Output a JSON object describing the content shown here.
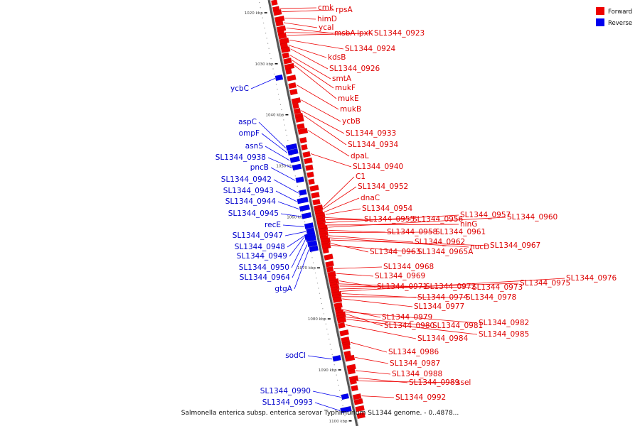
{
  "legend": {
    "forward": {
      "label": "Forward",
      "color": "#ee0000"
    },
    "reverse": {
      "label": "Reverse",
      "color": "#0000ee"
    }
  },
  "caption": "Salmonella enterica subsp. enterica serovar Typhimurium SL1344 genome. - 0..4878...",
  "ticks": [
    {
      "label": "1020 kbp",
      "kbp": 1020
    },
    {
      "label": "1030 kbp",
      "kbp": 1030
    },
    {
      "label": "1040 kbp",
      "kbp": 1040
    },
    {
      "label": "1050 kbp",
      "kbp": 1050
    },
    {
      "label": "1060 kbp",
      "kbp": 1060
    },
    {
      "label": "1070 kbp",
      "kbp": 1070
    },
    {
      "label": "1080 kbp",
      "kbp": 1080
    },
    {
      "label": "1090 kbp",
      "kbp": 1090
    },
    {
      "label": "1100 kbp",
      "kbp": 1100
    }
  ],
  "forward_genes": [
    {
      "name": "cmk",
      "kbp": 1019.5
    },
    {
      "name": "rpsA",
      "kbp": 1020.2
    },
    {
      "name": "himD",
      "kbp": 1021.5
    },
    {
      "name": "ycaI",
      "kbp": 1022.3
    },
    {
      "name": "msbA",
      "kbp": 1023.4
    },
    {
      "name": "lpxK",
      "kbp": 1024.2
    },
    {
      "name": "SL1344_0923",
      "kbp": 1024.8
    },
    {
      "name": "SL1344_0924",
      "kbp": 1025.8
    },
    {
      "name": "kdsB",
      "kbp": 1026.7
    },
    {
      "name": "SL1344_0926",
      "kbp": 1027.5
    },
    {
      "name": "smtA",
      "kbp": 1028.6
    },
    {
      "name": "mukF",
      "kbp": 1029.7
    },
    {
      "name": "mukE",
      "kbp": 1030.8
    },
    {
      "name": "mukB",
      "kbp": 1034.5
    },
    {
      "name": "ycbB",
      "kbp": 1037.5
    },
    {
      "name": "SL1344_0933",
      "kbp": 1039.5
    },
    {
      "name": "SL1344_0934",
      "kbp": 1040.5
    },
    {
      "name": "dpaL",
      "kbp": 1043.5
    },
    {
      "name": "SL1344_0940",
      "kbp": 1048.0
    },
    {
      "name": "C1",
      "kbp": 1058.5
    },
    {
      "name": "SL1344_0952",
      "kbp": 1059.0
    },
    {
      "name": "dnaC",
      "kbp": 1059.5
    },
    {
      "name": "SL1344_0954",
      "kbp": 1060.0
    },
    {
      "name": "SL1344_0955",
      "kbp": 1060.5
    },
    {
      "name": "SL1344_0956",
      "kbp": 1061.0
    },
    {
      "name": "SL1344_0957",
      "kbp": 1061.5
    },
    {
      "name": "ninG",
      "kbp": 1062.0
    },
    {
      "name": "SL1344_0960",
      "kbp": 1062.5
    },
    {
      "name": "SL1344_0958",
      "kbp": 1063.0
    },
    {
      "name": "SL1344_0961",
      "kbp": 1063.5
    },
    {
      "name": "SL1344_0962",
      "kbp": 1064.0
    },
    {
      "name": "nucD",
      "kbp": 1064.5
    },
    {
      "name": "SL1344_0967",
      "kbp": 1065.0
    },
    {
      "name": "SL1344_0963",
      "kbp": 1065.5
    },
    {
      "name": "SL1344_0965A",
      "kbp": 1066.0
    },
    {
      "name": "SL1344_0968",
      "kbp": 1070.5
    },
    {
      "name": "SL1344_0969",
      "kbp": 1071.5
    },
    {
      "name": "SL1344_0971",
      "kbp": 1073.0
    },
    {
      "name": "SL1344_0972",
      "kbp": 1073.5
    },
    {
      "name": "SL1344_0973",
      "kbp": 1074.0
    },
    {
      "name": "SL1344_0975",
      "kbp": 1074.5
    },
    {
      "name": "SL1344_0976",
      "kbp": 1075.0
    },
    {
      "name": "SL1344_0974",
      "kbp": 1075.5
    },
    {
      "name": "SL1344_0978",
      "kbp": 1076.0
    },
    {
      "name": "SL1344_0977",
      "kbp": 1076.5
    },
    {
      "name": "SL1344_0979",
      "kbp": 1078.5
    },
    {
      "name": "SL1344_0982",
      "kbp": 1079.0
    },
    {
      "name": "SL1344_0980",
      "kbp": 1079.5
    },
    {
      "name": "SL1344_0981",
      "kbp": 1080.0
    },
    {
      "name": "SL1344_0985",
      "kbp": 1080.5
    },
    {
      "name": "SL1344_0984",
      "kbp": 1081.5
    },
    {
      "name": "SL1344_0986",
      "kbp": 1085.0
    },
    {
      "name": "SL1344_0987",
      "kbp": 1088.0
    },
    {
      "name": "SL1344_0988",
      "kbp": 1090.5
    },
    {
      "name": "SL1344_0989",
      "kbp": 1092.0
    },
    {
      "name": "ssel",
      "kbp": 1092.5
    },
    {
      "name": "SL1344_0992",
      "kbp": 1095.5
    }
  ],
  "reverse_genes": [
    {
      "name": "ycbC",
      "kbp": 1032.5
    },
    {
      "name": "aspC",
      "kbp": 1046.0
    },
    {
      "name": "ompF",
      "kbp": 1047.0
    },
    {
      "name": "asnS",
      "kbp": 1048.5
    },
    {
      "name": "SL1344_0938",
      "kbp": 1050.0
    },
    {
      "name": "pncB",
      "kbp": 1052.5
    },
    {
      "name": "SL1344_0942",
      "kbp": 1055.0
    },
    {
      "name": "SL1344_0943",
      "kbp": 1056.5
    },
    {
      "name": "SL1344_0944",
      "kbp": 1058.0
    },
    {
      "name": "SL1344_0945",
      "kbp": 1059.5
    },
    {
      "name": "recE",
      "kbp": 1061.5
    },
    {
      "name": "SL1344_0947",
      "kbp": 1062.5
    },
    {
      "name": "SL1344_0948",
      "kbp": 1063.0
    },
    {
      "name": "SL1344_0949",
      "kbp": 1063.5
    },
    {
      "name": "SL1344_0950",
      "kbp": 1064.0
    },
    {
      "name": "SL1344_0964",
      "kbp": 1065.0
    },
    {
      "name": "gtgA",
      "kbp": 1066.0
    },
    {
      "name": "sodCl",
      "kbp": 1087.5
    },
    {
      "name": "SL1344_0990",
      "kbp": 1095.0
    },
    {
      "name": "SL1344_0993",
      "kbp": 1097.5
    }
  ]
}
